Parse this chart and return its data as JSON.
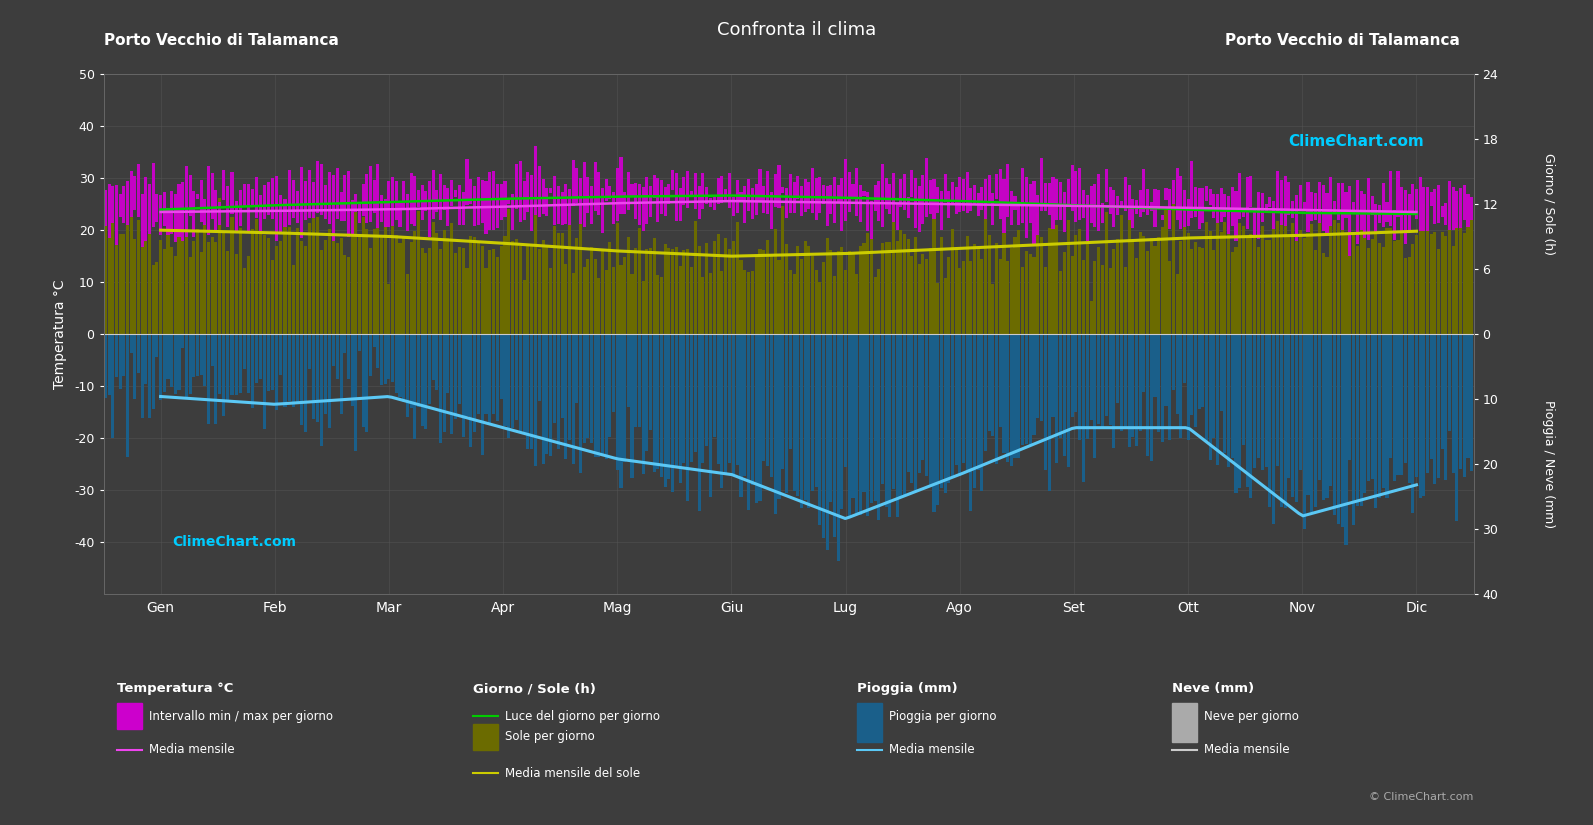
{
  "title": "Confronta il clima",
  "location_left": "Porto Vecchio di Talamanca",
  "location_right": "Porto Vecchio di Talamanca",
  "background_color": "#3d3d3d",
  "plot_bg_color": "#3d3d3d",
  "grid_color": "#555555",
  "text_color": "#ffffff",
  "months": [
    "Gen",
    "Feb",
    "Mar",
    "Apr",
    "Mag",
    "Giu",
    "Lug",
    "Ago",
    "Set",
    "Ott",
    "Nov",
    "Dic"
  ],
  "ylim_left": [
    -50,
    50
  ],
  "temp_mean": [
    23.5,
    23.7,
    24.0,
    24.5,
    25.2,
    25.6,
    25.3,
    25.0,
    24.7,
    24.3,
    23.9,
    23.5
  ],
  "temp_max_mean": [
    28.5,
    29.0,
    29.5,
    30.0,
    30.2,
    29.8,
    29.5,
    29.2,
    28.8,
    28.2,
    27.8,
    28.0
  ],
  "temp_min_mean": [
    20.5,
    21.0,
    21.5,
    22.0,
    22.5,
    23.0,
    22.8,
    22.5,
    22.0,
    21.5,
    21.0,
    20.5
  ],
  "daylight_hours": [
    11.5,
    11.9,
    12.2,
    12.5,
    12.7,
    12.8,
    12.6,
    12.3,
    11.9,
    11.5,
    11.2,
    11.1
  ],
  "sunshine_hours_scaled": [
    20.0,
    19.5,
    18.8,
    17.5,
    16.0,
    15.0,
    15.5,
    16.5,
    17.5,
    18.5,
    19.0,
    19.8
  ],
  "rain_mean_neg": [
    -12.0,
    -13.5,
    -12.0,
    -18.0,
    -24.0,
    -27.0,
    -35.5,
    -27.0,
    -18.0,
    -18.0,
    -35.0,
    -29.0
  ],
  "legend_items": {
    "temp_section": "Temperatura °C",
    "sun_section": "Giorno / Sole (h)",
    "rain_section": "Pioggia (mm)",
    "snow_section": "Neve (mm)",
    "temp_bar": "Intervallo min / max per giorno",
    "temp_mean_line": "Media mensile",
    "daylight_line": "Luce del giorno per giorno",
    "sun_bar": "Sole per giorno",
    "sun_mean": "Media mensile del sole",
    "rain_bar": "Pioggia per giorno",
    "rain_mean": "Media mensile",
    "snow_bar": "Neve per giorno",
    "snow_mean": "Media mensile"
  },
  "ylabel_left": "Temperatura °C",
  "ylabel_right_top": "Giorno / Sole (h)",
  "ylabel_right_bot": "Pioggia / Neve (mm)",
  "copyright": "© ClimeChart.com",
  "brand_text": "ClimeChart.com",
  "temp_bar_color": "#cc00cc",
  "sun_bar_color": "#6b6b00",
  "rain_bar_color": "#1a5f8a",
  "snow_bar_color": "#aaaaaa",
  "daylight_line_color": "#00cc00",
  "sun_mean_color": "#cccc00",
  "rain_mean_color": "#5bc8f5",
  "temp_mean_color": "#ee44ee",
  "snow_mean_color": "#cccccc",
  "brand_color_text": "#00ccff"
}
